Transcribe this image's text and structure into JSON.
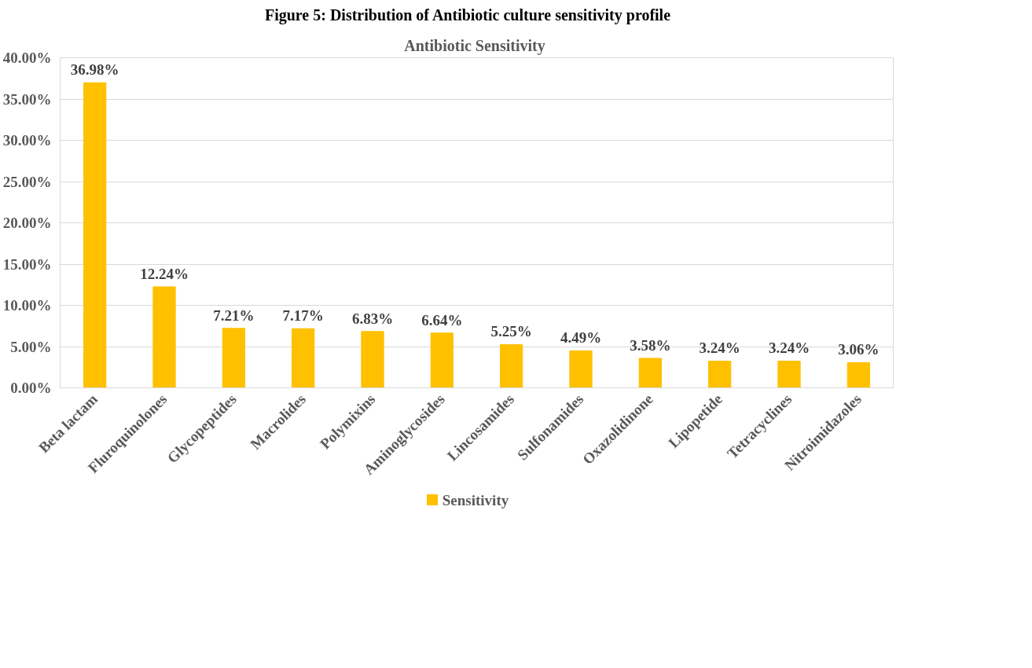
{
  "chart_data": {
    "type": "bar",
    "title": "Antibiotic  Sensitivity",
    "subtitle": "Figure 5: Distribution of Antibiotic culture sensitivity profile",
    "categories": [
      "Beta lactam",
      "Fluroquinolones",
      "Glycopeptides",
      "Macrolides",
      "Polymixins",
      "Aminoglycosides",
      "Lincosamides",
      "Sulfonamides",
      "Oxazolidinone",
      "Lipopetide",
      "Tetracyclines",
      "Nitroimidazoles"
    ],
    "series": [
      {
        "name": "Sensitivity",
        "color": "#ffc000",
        "values": [
          36.98,
          12.24,
          7.21,
          7.17,
          6.83,
          6.64,
          5.25,
          4.49,
          3.58,
          3.24,
          3.24,
          3.06
        ]
      }
    ],
    "value_labels": [
      "36.98%",
      "12.24%",
      "7.21%",
      "7.17%",
      "6.83%",
      "6.64%",
      "5.25%",
      "4.49%",
      "3.58%",
      "3.24%",
      "3.24%",
      "3.06%"
    ],
    "ylim": [
      0,
      40
    ],
    "yticks": [
      {
        "value": 0,
        "label": "0.00%"
      },
      {
        "value": 5,
        "label": "5.00%"
      },
      {
        "value": 10,
        "label": "10.00%"
      },
      {
        "value": 15,
        "label": "15.00%"
      },
      {
        "value": 20,
        "label": "20.00%"
      },
      {
        "value": 25,
        "label": "25.00%"
      },
      {
        "value": 30,
        "label": "30.00%"
      },
      {
        "value": 35,
        "label": "35.00%"
      },
      {
        "value": 40,
        "label": "40.00%"
      }
    ],
    "grid": "y",
    "legend": "bottom"
  }
}
